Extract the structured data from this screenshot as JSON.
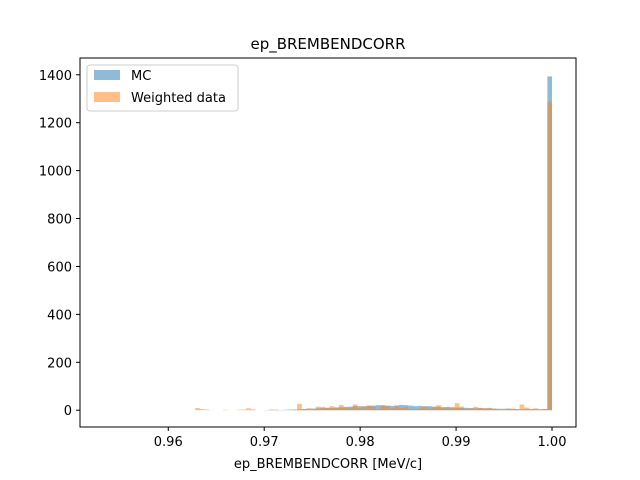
{
  "chart_data": {
    "type": "bar",
    "title": "ep_BREMBENDCORR",
    "xlabel": "ep_BREMBENDCORR [MeV/c]",
    "ylabel": "",
    "xlim": [
      0.9508,
      1.0025
    ],
    "ylim": [
      -70,
      1470
    ],
    "xticks": [
      0.96,
      0.97,
      0.98,
      0.99,
      1.0
    ],
    "xtick_labels": [
      "0.96",
      "0.97",
      "0.98",
      "0.99",
      "1.00"
    ],
    "yticks": [
      0,
      200,
      400,
      600,
      800,
      1000,
      1200,
      1400
    ],
    "ytick_labels": [
      "0",
      "200",
      "400",
      "600",
      "800",
      "1000",
      "1200",
      "1400"
    ],
    "grid": false,
    "legend_position": "upper-left",
    "bin_range": [
      0.9517,
      1.0
    ],
    "bin_count": 100,
    "series": [
      {
        "name": "MC",
        "color": "#1f77b4",
        "alpha": 0.5,
        "values": [
          0,
          0,
          0,
          0,
          0,
          0,
          0,
          0,
          0,
          0,
          0,
          0,
          0,
          0,
          0,
          0,
          0,
          0,
          0,
          0,
          0,
          0,
          0,
          0,
          0,
          0,
          0,
          0,
          0,
          0,
          0,
          0,
          0,
          0,
          0,
          0,
          0,
          0,
          1,
          1,
          2,
          1,
          2,
          3,
          3,
          4,
          5,
          6,
          7,
          8,
          9,
          10,
          10,
          11,
          12,
          14,
          15,
          17,
          17,
          16,
          18,
          19,
          21,
          20,
          19,
          18,
          20,
          22,
          21,
          19,
          17,
          18,
          16,
          17,
          15,
          14,
          13,
          14,
          12,
          11,
          10,
          10,
          9,
          8,
          9,
          8,
          8,
          7,
          6,
          6,
          7,
          5,
          5,
          4,
          5,
          4,
          4,
          3,
          5,
          1393
        ]
      },
      {
        "name": "Weighted data",
        "color": "#ff7f0e",
        "alpha": 0.5,
        "values": [
          0,
          0,
          0,
          0,
          0,
          0,
          0,
          0,
          0,
          0,
          0,
          0,
          0,
          0,
          0,
          0,
          0,
          0,
          0,
          0,
          0,
          0,
          0,
          9,
          5,
          3,
          0,
          0,
          0,
          2,
          0,
          0,
          2,
          3,
          8,
          4,
          0,
          0,
          0,
          3,
          1,
          0,
          0,
          0,
          2,
          27,
          5,
          8,
          3,
          15,
          14,
          10,
          17,
          12,
          22,
          10,
          9,
          24,
          8,
          16,
          20,
          14,
          6,
          21,
          18,
          8,
          16,
          9,
          13,
          5,
          4,
          7,
          16,
          7,
          12,
          21,
          9,
          8,
          12,
          29,
          15,
          6,
          8,
          14,
          10,
          8,
          10,
          6,
          3,
          2,
          5,
          7,
          4,
          24,
          11,
          6,
          8,
          5,
          4,
          1288
        ]
      }
    ]
  }
}
